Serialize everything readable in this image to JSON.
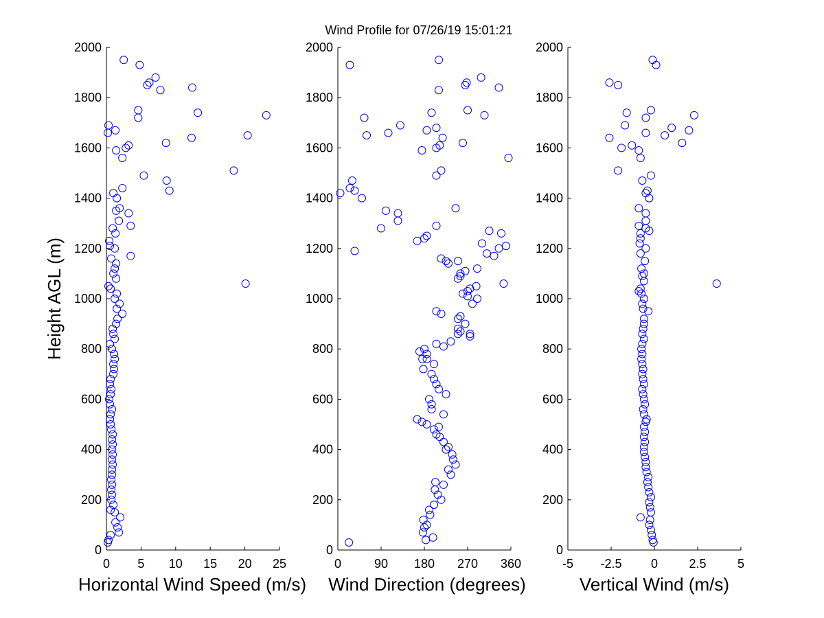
{
  "figure": {
    "title": "Wind Profile for  07/26/19 15:01:21",
    "marker_color": "#0000ff",
    "axis_color": "#000000",
    "background": "#ffffff"
  },
  "chart_data": [
    {
      "type": "scatter",
      "name": "speed",
      "xlabel": "Horizontal Wind Speed (m/s)",
      "ylabel": "Height AGL (m)",
      "xlim": [
        0,
        25
      ],
      "ylim": [
        0,
        2000
      ],
      "xticks": [
        0,
        5,
        10,
        15,
        20,
        25
      ],
      "xtick_labels": [
        "0",
        "5",
        "10",
        "15",
        "20",
        "25"
      ],
      "yticks": [
        0,
        200,
        400,
        600,
        800,
        1000,
        1200,
        1400,
        1600,
        1800,
        2000
      ],
      "ytick_labels": [
        "0",
        "200",
        "400",
        "600",
        "800",
        "1000",
        "1200",
        "1400",
        "1600",
        "1800",
        "2000"
      ],
      "points": [
        [
          0.2,
          30
        ],
        [
          0.3,
          40
        ],
        [
          0.6,
          60
        ],
        [
          1.8,
          70
        ],
        [
          1.6,
          90
        ],
        [
          1.3,
          110
        ],
        [
          2.0,
          130
        ],
        [
          1.2,
          150
        ],
        [
          0.6,
          160
        ],
        [
          1.0,
          180
        ],
        [
          0.7,
          200
        ],
        [
          0.8,
          220
        ],
        [
          0.7,
          240
        ],
        [
          0.8,
          260
        ],
        [
          0.7,
          280
        ],
        [
          0.8,
          300
        ],
        [
          0.8,
          320
        ],
        [
          0.9,
          340
        ],
        [
          0.8,
          360
        ],
        [
          0.9,
          380
        ],
        [
          0.8,
          400
        ],
        [
          0.9,
          420
        ],
        [
          0.8,
          440
        ],
        [
          0.9,
          460
        ],
        [
          0.7,
          480
        ],
        [
          0.6,
          500
        ],
        [
          0.5,
          520
        ],
        [
          0.6,
          540
        ],
        [
          0.8,
          560
        ],
        [
          0.5,
          580
        ],
        [
          0.4,
          600
        ],
        [
          0.6,
          620
        ],
        [
          0.7,
          640
        ],
        [
          0.5,
          660
        ],
        [
          0.6,
          680
        ],
        [
          1.0,
          700
        ],
        [
          1.1,
          720
        ],
        [
          1.0,
          740
        ],
        [
          1.2,
          760
        ],
        [
          1.1,
          780
        ],
        [
          0.8,
          800
        ],
        [
          0.5,
          820
        ],
        [
          1.2,
          840
        ],
        [
          1.0,
          860
        ],
        [
          0.9,
          880
        ],
        [
          1.4,
          900
        ],
        [
          1.6,
          920
        ],
        [
          2.3,
          940
        ],
        [
          1.5,
          960
        ],
        [
          1.9,
          980
        ],
        [
          1.2,
          1000
        ],
        [
          1.5,
          1020
        ],
        [
          0.6,
          1040
        ],
        [
          0.3,
          1050
        ],
        [
          1.4,
          1080
        ],
        [
          1.0,
          1100
        ],
        [
          1.2,
          1120
        ],
        [
          1.4,
          1140
        ],
        [
          0.7,
          1160
        ],
        [
          3.5,
          1170
        ],
        [
          1.2,
          1200
        ],
        [
          0.5,
          1210
        ],
        [
          0.4,
          1230
        ],
        [
          1.3,
          1260
        ],
        [
          0.9,
          1280
        ],
        [
          3.5,
          1290
        ],
        [
          1.8,
          1310
        ],
        [
          3.2,
          1340
        ],
        [
          1.4,
          1350
        ],
        [
          1.9,
          1360
        ],
        [
          1.5,
          1400
        ],
        [
          1.0,
          1420
        ],
        [
          2.3,
          1440
        ],
        [
          9.1,
          1430
        ],
        [
          8.7,
          1470
        ],
        [
          5.4,
          1490
        ],
        [
          18.4,
          1510
        ],
        [
          2.3,
          1560
        ],
        [
          1.4,
          1590
        ],
        [
          3.2,
          1610
        ],
        [
          2.8,
          1600
        ],
        [
          8.6,
          1620
        ],
        [
          12.3,
          1640
        ],
        [
          20.4,
          1650
        ],
        [
          0.2,
          1660
        ],
        [
          1.3,
          1670
        ],
        [
          0.3,
          1690
        ],
        [
          4.6,
          1720
        ],
        [
          23.1,
          1730
        ],
        [
          13.2,
          1740
        ],
        [
          4.6,
          1750
        ],
        [
          7.8,
          1830
        ],
        [
          12.4,
          1840
        ],
        [
          5.9,
          1850
        ],
        [
          6.2,
          1860
        ],
        [
          7.1,
          1880
        ],
        [
          4.8,
          1930
        ],
        [
          2.5,
          1950
        ],
        [
          20.1,
          1060
        ]
      ]
    },
    {
      "type": "scatter",
      "name": "direction",
      "xlabel": "Wind Direction (degrees)",
      "ylabel": "",
      "xlim": [
        0,
        360
      ],
      "ylim": [
        0,
        2000
      ],
      "xticks": [
        0,
        90,
        180,
        270,
        360
      ],
      "xtick_labels": [
        "0",
        "90",
        "180",
        "270",
        "360"
      ],
      "yticks": [
        0,
        200,
        400,
        600,
        800,
        1000,
        1200,
        1400,
        1600,
        1800,
        2000
      ],
      "ytick_labels": [
        "0",
        "200",
        "400",
        "600",
        "800",
        "1000",
        "1200",
        "1400",
        "1600",
        "1800",
        "2000"
      ],
      "points": [
        [
          23,
          30
        ],
        [
          183,
          40
        ],
        [
          198,
          50
        ],
        [
          177,
          70
        ],
        [
          180,
          90
        ],
        [
          185,
          100
        ],
        [
          178,
          120
        ],
        [
          192,
          140
        ],
        [
          190,
          160
        ],
        [
          200,
          180
        ],
        [
          215,
          200
        ],
        [
          208,
          220
        ],
        [
          202,
          240
        ],
        [
          220,
          260
        ],
        [
          203,
          270
        ],
        [
          235,
          300
        ],
        [
          230,
          320
        ],
        [
          245,
          340
        ],
        [
          240,
          360
        ],
        [
          238,
          380
        ],
        [
          225,
          400
        ],
        [
          230,
          410
        ],
        [
          220,
          430
        ],
        [
          212,
          450
        ],
        [
          205,
          460
        ],
        [
          200,
          480
        ],
        [
          210,
          490
        ],
        [
          185,
          500
        ],
        [
          175,
          510
        ],
        [
          165,
          520
        ],
        [
          220,
          540
        ],
        [
          195,
          560
        ],
        [
          195,
          580
        ],
        [
          190,
          600
        ],
        [
          225,
          620
        ],
        [
          210,
          640
        ],
        [
          205,
          660
        ],
        [
          200,
          680
        ],
        [
          195,
          700
        ],
        [
          178,
          720
        ],
        [
          200,
          740
        ],
        [
          185,
          760
        ],
        [
          176,
          760
        ],
        [
          185,
          780
        ],
        [
          170,
          790
        ],
        [
          180,
          800
        ],
        [
          220,
          810
        ],
        [
          205,
          820
        ],
        [
          235,
          830
        ],
        [
          275,
          850
        ],
        [
          250,
          860
        ],
        [
          255,
          870
        ],
        [
          275,
          860
        ],
        [
          250,
          880
        ],
        [
          265,
          900
        ],
        [
          250,
          920
        ],
        [
          255,
          930
        ],
        [
          215,
          940
        ],
        [
          205,
          950
        ],
        [
          280,
          980
        ],
        [
          290,
          1000
        ],
        [
          270,
          1010
        ],
        [
          260,
          1020
        ],
        [
          270,
          1030
        ],
        [
          275,
          1040
        ],
        [
          288,
          1050
        ],
        [
          345,
          1060
        ],
        [
          250,
          1080
        ],
        [
          255,
          1090
        ],
        [
          255,
          1100
        ],
        [
          265,
          1110
        ],
        [
          290,
          1120
        ],
        [
          230,
          1140
        ],
        [
          225,
          1150
        ],
        [
          250,
          1150
        ],
        [
          215,
          1160
        ],
        [
          325,
          1170
        ],
        [
          310,
          1180
        ],
        [
          335,
          1200
        ],
        [
          350,
          1210
        ],
        [
          300,
          1220
        ],
        [
          165,
          1230
        ],
        [
          180,
          1240
        ],
        [
          185,
          1250
        ],
        [
          340,
          1260
        ],
        [
          315,
          1270
        ],
        [
          90,
          1280
        ],
        [
          205,
          1290
        ],
        [
          125,
          1310
        ],
        [
          125,
          1340
        ],
        [
          100,
          1350
        ],
        [
          245,
          1360
        ],
        [
          50,
          1400
        ],
        [
          5,
          1420
        ],
        [
          25,
          1440
        ],
        [
          35,
          1430
        ],
        [
          30,
          1470
        ],
        [
          205,
          1490
        ],
        [
          215,
          1510
        ],
        [
          355,
          1560
        ],
        [
          175,
          1590
        ],
        [
          205,
          1600
        ],
        [
          212,
          1610
        ],
        [
          260,
          1620
        ],
        [
          218,
          1640
        ],
        [
          60,
          1650
        ],
        [
          105,
          1660
        ],
        [
          185,
          1670
        ],
        [
          205,
          1680
        ],
        [
          130,
          1690
        ],
        [
          55,
          1720
        ],
        [
          305,
          1730
        ],
        [
          195,
          1740
        ],
        [
          270,
          1750
        ],
        [
          210,
          1830
        ],
        [
          335,
          1840
        ],
        [
          265,
          1850
        ],
        [
          268,
          1860
        ],
        [
          298,
          1880
        ],
        [
          25,
          1930
        ],
        [
          210,
          1950
        ],
        [
          35,
          1190
        ]
      ]
    },
    {
      "type": "scatter",
      "name": "vertical",
      "xlabel": "Vertical Wind (m/s)",
      "ylabel": "",
      "xlim": [
        -5,
        5
      ],
      "ylim": [
        0,
        2000
      ],
      "xticks": [
        -5,
        -2.5,
        0,
        2.5,
        5
      ],
      "xtick_labels": [
        "-5",
        "-2.5",
        "0",
        "2.5",
        "5"
      ],
      "yticks": [
        0,
        200,
        400,
        600,
        800,
        1000,
        1200,
        1400,
        1600,
        1800,
        2000
      ],
      "ytick_labels": [
        "0",
        "200",
        "400",
        "600",
        "800",
        "1000",
        "1200",
        "1400",
        "1600",
        "1800",
        "2000"
      ],
      "points": [
        [
          -0.05,
          30
        ],
        [
          -0.1,
          40
        ],
        [
          -0.15,
          60
        ],
        [
          -0.2,
          80
        ],
        [
          -0.3,
          100
        ],
        [
          -0.25,
          120
        ],
        [
          -0.8,
          130
        ],
        [
          -0.2,
          150
        ],
        [
          -0.25,
          170
        ],
        [
          -0.3,
          190
        ],
        [
          -0.2,
          210
        ],
        [
          -0.3,
          230
        ],
        [
          -0.35,
          250
        ],
        [
          -0.4,
          270
        ],
        [
          -0.35,
          290
        ],
        [
          -0.45,
          310
        ],
        [
          -0.5,
          330
        ],
        [
          -0.5,
          350
        ],
        [
          -0.55,
          370
        ],
        [
          -0.6,
          390
        ],
        [
          -0.6,
          410
        ],
        [
          -0.55,
          430
        ],
        [
          -0.6,
          450
        ],
        [
          -0.55,
          470
        ],
        [
          -0.6,
          490
        ],
        [
          -0.5,
          510
        ],
        [
          -0.45,
          520
        ],
        [
          -0.6,
          540
        ],
        [
          -0.65,
          560
        ],
        [
          -0.55,
          580
        ],
        [
          -0.6,
          600
        ],
        [
          -0.65,
          620
        ],
        [
          -0.7,
          640
        ],
        [
          -0.6,
          660
        ],
        [
          -0.65,
          680
        ],
        [
          -0.7,
          700
        ],
        [
          -0.65,
          720
        ],
        [
          -0.7,
          740
        ],
        [
          -0.75,
          760
        ],
        [
          -0.7,
          780
        ],
        [
          -0.75,
          800
        ],
        [
          -0.7,
          820
        ],
        [
          -0.6,
          840
        ],
        [
          -0.7,
          860
        ],
        [
          -0.65,
          880
        ],
        [
          -0.6,
          900
        ],
        [
          -0.6,
          920
        ],
        [
          -0.35,
          950
        ],
        [
          -0.65,
          960
        ],
        [
          -0.7,
          980
        ],
        [
          -0.6,
          1000
        ],
        [
          -0.75,
          1020
        ],
        [
          -0.9,
          1030
        ],
        [
          -0.8,
          1040
        ],
        [
          -0.6,
          1070
        ],
        [
          -0.7,
          1090
        ],
        [
          -0.6,
          1100
        ],
        [
          -0.75,
          1120
        ],
        [
          -0.55,
          1150
        ],
        [
          -0.8,
          1180
        ],
        [
          -0.5,
          1200
        ],
        [
          -0.85,
          1220
        ],
        [
          -0.8,
          1240
        ],
        [
          -0.8,
          1260
        ],
        [
          -0.3,
          1270
        ],
        [
          -0.5,
          1280
        ],
        [
          -0.9,
          1290
        ],
        [
          -0.5,
          1310
        ],
        [
          -0.5,
          1340
        ],
        [
          -0.9,
          1360
        ],
        [
          -0.3,
          1400
        ],
        [
          -0.4,
          1430
        ],
        [
          -0.5,
          1420
        ],
        [
          -0.7,
          1470
        ],
        [
          -0.2,
          1490
        ],
        [
          -2.1,
          1510
        ],
        [
          -0.8,
          1560
        ],
        [
          -0.9,
          1590
        ],
        [
          -1.9,
          1600
        ],
        [
          -1.3,
          1610
        ],
        [
          1.6,
          1620
        ],
        [
          -2.6,
          1640
        ],
        [
          0.6,
          1650
        ],
        [
          -0.5,
          1660
        ],
        [
          2.0,
          1670
        ],
        [
          1.0,
          1680
        ],
        [
          -1.7,
          1690
        ],
        [
          -0.5,
          1720
        ],
        [
          2.3,
          1730
        ],
        [
          -1.6,
          1740
        ],
        [
          -0.2,
          1750
        ],
        [
          -2.1,
          1850
        ],
        [
          -2.6,
          1860
        ],
        [
          0.1,
          1930
        ],
        [
          -0.1,
          1950
        ],
        [
          3.6,
          1060
        ]
      ]
    }
  ]
}
